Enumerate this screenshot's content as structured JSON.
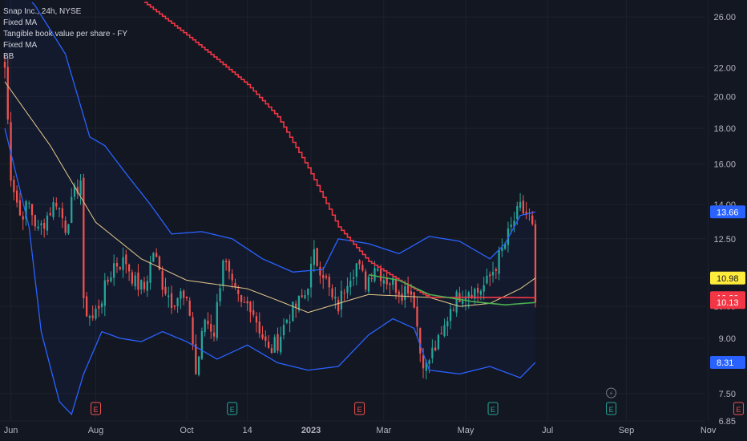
{
  "legend": {
    "symbol": "Snap Inc., 24h, NYSE",
    "items": [
      "Fixed MA",
      "Tangible book value per share - FY",
      "Fixed MA",
      "BB"
    ]
  },
  "colors": {
    "background": "#131722",
    "grid": "#1e222d",
    "up": "#26a69a",
    "down": "#ef5350",
    "bollinger": "#2962ff",
    "ma_slow": "#f23645",
    "ma_fast": "#e5c98a",
    "green_ma": "#4caf50",
    "axis_text": "#b2b5be"
  },
  "chart_data": {
    "type": "candlestick",
    "title": "Snap Inc., 24h, NYSE",
    "xlabel": "",
    "ylabel": "",
    "scale": "log",
    "ylim": [
      6.85,
      27.5
    ],
    "x_ticks": [
      "Jun",
      "Aug",
      "Oct",
      "14",
      "2023",
      "Mar",
      "May",
      "Jul",
      "Sep",
      "Nov"
    ],
    "y_ticks": [
      "26.00",
      "22.00",
      "20.00",
      "18.00",
      "16.00",
      "14.00",
      "12.50",
      "11.00",
      "10.00",
      "9.00",
      "7.50",
      "6.85"
    ],
    "price_tags": [
      {
        "value": "13.66",
        "color": "#2962ff",
        "text_color": "#ffffff"
      },
      {
        "value": "10.98",
        "color": "#ffeb3b",
        "text_color": "#131722"
      },
      {
        "value": "10.29",
        "color": "#f23645",
        "text_color": "#ffffff"
      },
      {
        "value": "10.13",
        "color": "#f23645",
        "text_color": "#ffffff"
      },
      {
        "value": "8.31",
        "color": "#2962ff",
        "text_color": "#ffffff"
      }
    ],
    "earnings_markers": [
      {
        "period": "Jul 2022",
        "label": "E",
        "type": "past"
      },
      {
        "period": "Oct 2022",
        "label": "E",
        "type": "beat"
      },
      {
        "period": "Jan 2023",
        "label": "E",
        "type": "past"
      },
      {
        "period": "Apr 2023",
        "label": "E",
        "type": "beat"
      },
      {
        "period": "Jul 2023",
        "label": "E",
        "type": "beat"
      },
      {
        "period": "Oct 2023",
        "label": "E",
        "type": "upcoming"
      }
    ],
    "dividend_marker": {
      "label": "⚡"
    },
    "anchors": [
      [
        0,
        22.0
      ],
      [
        2,
        15.5
      ],
      [
        5,
        13.5
      ],
      [
        8,
        14.0
      ],
      [
        11,
        12.8
      ],
      [
        14,
        13.5
      ],
      [
        17,
        14.2
      ],
      [
        20,
        13.0
      ],
      [
        23,
        14.5
      ],
      [
        25,
        15.2
      ],
      [
        26,
        10.0
      ],
      [
        29,
        9.6
      ],
      [
        32,
        10.3
      ],
      [
        36,
        11.5
      ],
      [
        40,
        11.6
      ],
      [
        43,
        10.8
      ],
      [
        46,
        10.6
      ],
      [
        49,
        12.0
      ],
      [
        52,
        10.8
      ],
      [
        55,
        10.2
      ],
      [
        58,
        10.4
      ],
      [
        61,
        9.8
      ],
      [
        63,
        8.0
      ],
      [
        66,
        9.6
      ],
      [
        69,
        9.2
      ],
      [
        72,
        11.8
      ],
      [
        75,
        10.6
      ],
      [
        78,
        10.0
      ],
      [
        81,
        10.1
      ],
      [
        84,
        9.3
      ],
      [
        87,
        8.6
      ],
      [
        90,
        8.9
      ],
      [
        93,
        9.6
      ],
      [
        96,
        10.0
      ],
      [
        99,
        10.4
      ],
      [
        102,
        11.8
      ],
      [
        105,
        11.2
      ],
      [
        108,
        10.2
      ],
      [
        110,
        10.0
      ],
      [
        113,
        11.0
      ],
      [
        116,
        11.5
      ],
      [
        119,
        10.8
      ],
      [
        122,
        11.5
      ],
      [
        125,
        11.0
      ],
      [
        128,
        10.8
      ],
      [
        131,
        10.5
      ],
      [
        133,
        10.7
      ],
      [
        135,
        10.2
      ],
      [
        137,
        8.6
      ],
      [
        139,
        8.2
      ],
      [
        141,
        8.6
      ],
      [
        144,
        9.0
      ],
      [
        147,
        10.0
      ],
      [
        150,
        10.4
      ],
      [
        153,
        10.6
      ],
      [
        156,
        10.5
      ],
      [
        159,
        10.8
      ],
      [
        162,
        11.5
      ],
      [
        165,
        12.3
      ],
      [
        168,
        13.3
      ],
      [
        170,
        13.8
      ],
      [
        173,
        13.4
      ],
      [
        174,
        12.9
      ],
      [
        175,
        10.13
      ]
    ],
    "ma_slow": [
      [
        45,
        27.5
      ],
      [
        60,
        24.5
      ],
      [
        70,
        22.6
      ],
      [
        80,
        20.8
      ],
      [
        90,
        18.7
      ],
      [
        100,
        15.8
      ],
      [
        110,
        13.0
      ],
      [
        120,
        11.6
      ],
      [
        130,
        10.9
      ],
      [
        140,
        10.3
      ],
      [
        160,
        10.3
      ],
      [
        175,
        10.29
      ]
    ],
    "ma_fast": [
      [
        0,
        21.0
      ],
      [
        15,
        17.0
      ],
      [
        30,
        13.2
      ],
      [
        45,
        11.7
      ],
      [
        60,
        10.9
      ],
      [
        80,
        10.6
      ],
      [
        90,
        10.2
      ],
      [
        100,
        9.8
      ],
      [
        120,
        10.4
      ],
      [
        140,
        10.3
      ],
      [
        150,
        10.0
      ],
      [
        160,
        10.1
      ],
      [
        170,
        10.6
      ],
      [
        175,
        10.98
      ]
    ],
    "green_ma": [
      [
        120,
        11.1
      ],
      [
        130,
        10.9
      ],
      [
        140,
        10.4
      ],
      [
        155,
        10.15
      ],
      [
        165,
        10.05
      ],
      [
        175,
        10.13
      ]
    ],
    "bb_upper": [
      [
        0,
        30.0
      ],
      [
        10,
        27.0
      ],
      [
        20,
        23.0
      ],
      [
        28,
        17.5
      ],
      [
        33,
        17.0
      ],
      [
        40,
        15.5
      ],
      [
        48,
        14.0
      ],
      [
        55,
        12.7
      ],
      [
        65,
        12.8
      ],
      [
        75,
        12.5
      ],
      [
        85,
        11.7
      ],
      [
        95,
        11.2
      ],
      [
        105,
        11.3
      ],
      [
        110,
        12.5
      ],
      [
        120,
        12.3
      ],
      [
        130,
        11.9
      ],
      [
        140,
        12.6
      ],
      [
        150,
        12.4
      ],
      [
        160,
        11.7
      ],
      [
        165,
        12.3
      ],
      [
        170,
        13.5
      ],
      [
        175,
        13.66
      ]
    ],
    "bb_lower": [
      [
        0,
        18.0
      ],
      [
        8,
        13.0
      ],
      [
        12,
        9.2
      ],
      [
        18,
        7.3
      ],
      [
        22,
        7.0
      ],
      [
        26,
        8.0
      ],
      [
        32,
        9.2
      ],
      [
        38,
        9.0
      ],
      [
        45,
        8.9
      ],
      [
        52,
        9.2
      ],
      [
        60,
        8.9
      ],
      [
        70,
        8.4
      ],
      [
        80,
        8.8
      ],
      [
        90,
        8.3
      ],
      [
        100,
        8.1
      ],
      [
        110,
        8.2
      ],
      [
        120,
        9.1
      ],
      [
        128,
        9.6
      ],
      [
        135,
        9.3
      ],
      [
        140,
        8.1
      ],
      [
        150,
        8.0
      ],
      [
        160,
        8.2
      ],
      [
        170,
        7.9
      ],
      [
        175,
        8.31
      ]
    ]
  }
}
